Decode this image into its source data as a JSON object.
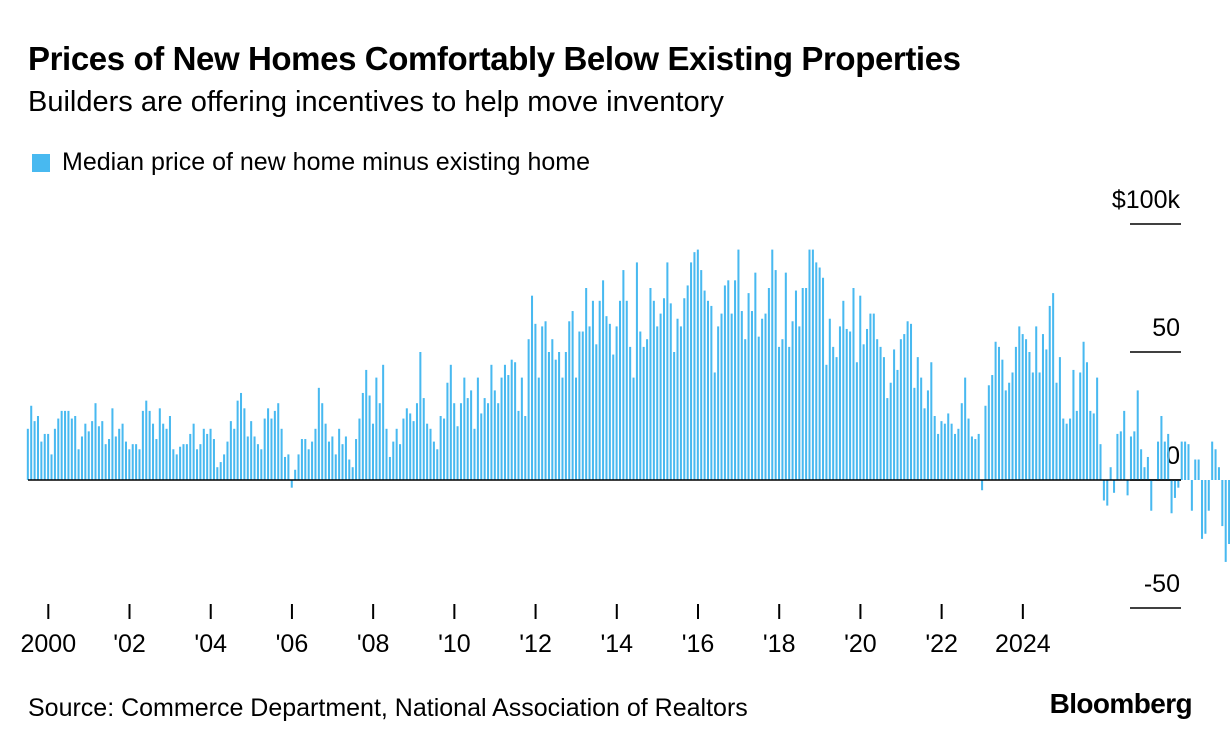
{
  "title": "Prices of New Homes Comfortably Below Existing Properties",
  "subtitle": "Builders are offering incentives to help move inventory",
  "source": "Source: Commerce Department, National Association of Realtors",
  "logo": "Bloomberg",
  "colors": {
    "bar": "#48b9f0",
    "axis": "#000000"
  },
  "chart_data": {
    "type": "bar",
    "title": "Prices of New Homes Comfortably Below Existing Properties",
    "legend": [
      "Median price of new home minus existing home"
    ],
    "legend_position": "top-left",
    "unit": "thousands of US dollars",
    "x_start": 1999.5,
    "step": 0.0833333,
    "ylim": [
      -50,
      100
    ],
    "y_ticks": [
      100,
      50,
      0,
      -50
    ],
    "y_tick_labels": [
      "$100k",
      "50",
      "0",
      "-50"
    ],
    "x_ticks": [
      2000,
      2002,
      2004,
      2006,
      2008,
      2010,
      2012,
      2014,
      2016,
      2018,
      2020,
      2022,
      2024
    ],
    "x_tick_labels": [
      "2000",
      "'02",
      "'04",
      "'06",
      "'08",
      "'10",
      "'12",
      "'14",
      "'16",
      "'18",
      "'20",
      "'22",
      "2024"
    ],
    "series": [
      {
        "name": "Median price of new home minus existing home",
        "values": [
          20,
          29,
          23,
          25,
          15,
          18,
          18,
          10,
          20,
          24,
          27,
          27,
          27,
          24,
          25,
          12,
          17,
          22,
          19,
          23,
          30,
          21,
          23,
          14,
          16,
          28,
          17,
          20,
          22,
          15,
          12,
          14,
          14,
          12,
          27,
          31,
          27,
          22,
          16,
          28,
          22,
          20,
          25,
          12,
          10,
          13,
          14,
          14,
          18,
          22,
          12,
          14,
          20,
          18,
          20,
          16,
          5,
          7,
          10,
          15,
          23,
          20,
          31,
          34,
          28,
          17,
          23,
          17,
          14,
          12,
          24,
          28,
          24,
          27,
          30,
          20,
          9,
          10,
          -3,
          4,
          10,
          16,
          16,
          12,
          15,
          20,
          36,
          30,
          22,
          15,
          17,
          10,
          20,
          14,
          17,
          8,
          5,
          16,
          24,
          34,
          43,
          33,
          22,
          40,
          30,
          45,
          20,
          9,
          15,
          20,
          14,
          24,
          28,
          26,
          23,
          30,
          50,
          32,
          22,
          20,
          15,
          12,
          25,
          24,
          38,
          45,
          30,
          21,
          30,
          40,
          32,
          35,
          20,
          40,
          26,
          32,
          30,
          45,
          35,
          30,
          40,
          45,
          41,
          47,
          46,
          27,
          40,
          25,
          55,
          72,
          61,
          40,
          60,
          62,
          50,
          55,
          47,
          50,
          40,
          50,
          62,
          66,
          40,
          58,
          58,
          75,
          60,
          70,
          53,
          70,
          78,
          64,
          61,
          49,
          60,
          70,
          82,
          70,
          52,
          40,
          85,
          58,
          52,
          55,
          75,
          70,
          60,
          65,
          71,
          85,
          69,
          50,
          63,
          60,
          71,
          76,
          85,
          89,
          90,
          82,
          74,
          70,
          68,
          42,
          60,
          65,
          76,
          78,
          65,
          78,
          90,
          66,
          55,
          73,
          66,
          81,
          56,
          63,
          65,
          75,
          90,
          82,
          52,
          55,
          81,
          52,
          62,
          74,
          60,
          75,
          75,
          90,
          90,
          85,
          83,
          79,
          45,
          63,
          52,
          48,
          60,
          70,
          59,
          58,
          75,
          46,
          72,
          53,
          59,
          65,
          65,
          55,
          52,
          48,
          32,
          38,
          51,
          43,
          55,
          57,
          62,
          61,
          36,
          48,
          40,
          28,
          35,
          46,
          25,
          18,
          23,
          22,
          26,
          22,
          18,
          20,
          30,
          40,
          24,
          17,
          16,
          18,
          -4,
          29,
          37,
          41,
          54,
          52,
          47,
          35,
          38,
          42,
          52,
          60,
          57,
          55,
          50,
          42,
          60,
          42,
          57,
          51,
          68,
          73,
          38,
          48,
          24,
          22,
          24,
          43,
          27,
          42,
          54,
          46,
          27,
          26,
          40,
          14,
          -8,
          -10,
          5,
          -5,
          18,
          19,
          27,
          -6,
          17,
          19,
          35,
          12,
          5,
          9,
          -12,
          0,
          15,
          25,
          15,
          18,
          -13,
          -7,
          -3,
          15,
          15,
          14,
          -12,
          8,
          8,
          -23,
          -21,
          -12,
          15,
          12,
          5,
          -18,
          -32,
          -25,
          -20
        ]
      }
    ]
  }
}
